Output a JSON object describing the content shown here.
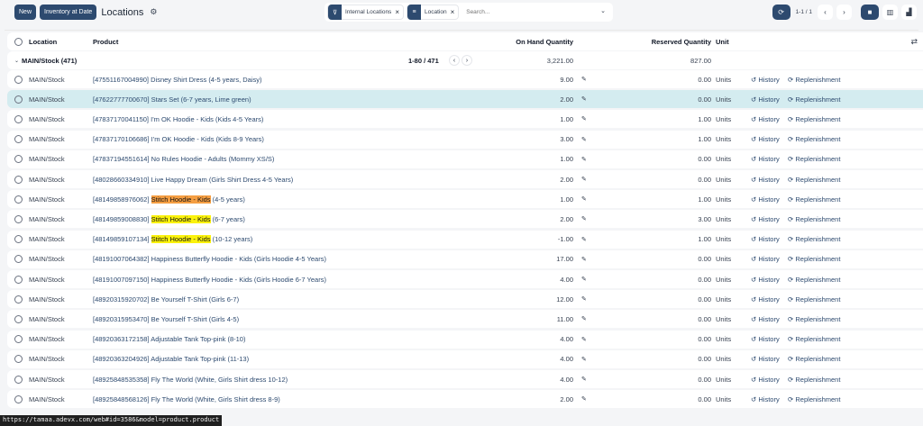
{
  "toolbar": {
    "new_label": "New",
    "inventory_label": "Inventory at Date",
    "title": "Locations",
    "pager": "1-1 / 1"
  },
  "search": {
    "facets": [
      {
        "icon": "filter-icon",
        "label": "Internal Locations"
      },
      {
        "icon": "group-icon",
        "label": "Location"
      }
    ],
    "placeholder": "Search..."
  },
  "columns": {
    "location": "Location",
    "product": "Product",
    "on_hand": "On Hand Quantity",
    "reserved": "Reserved Quantity",
    "unit": "Unit"
  },
  "group": {
    "label": "MAIN/Stock (471)",
    "pager": "1-80 / 471",
    "on_hand": "3,221.00",
    "reserved": "827.00"
  },
  "actions": {
    "history": "History",
    "replenishment": "Replenishment"
  },
  "highlight_colors": {
    "active": "#f59e42",
    "match": "#fbf20c"
  },
  "rows": [
    {
      "location": "MAIN/Stock",
      "code": "[47551167004990]",
      "name": "Disney Shirt Dress",
      "variant": "(4-5 years, Daisy)",
      "qty": "9.00",
      "reserved": "0.00",
      "unit": "Units"
    },
    {
      "location": "MAIN/Stock",
      "code": "[47622777700670]",
      "name": "Stars Set",
      "variant": "(6-7 years, Lime green)",
      "qty": "2.00",
      "reserved": "0.00",
      "unit": "Units",
      "selected": true
    },
    {
      "location": "MAIN/Stock",
      "code": "[47837170041150]",
      "name": "I'm OK Hoodie - Kids",
      "variant": "(Kids 4-5 Years)",
      "qty": "1.00",
      "reserved": "1.00",
      "unit": "Units"
    },
    {
      "location": "MAIN/Stock",
      "code": "[47837170106686]",
      "name": "I'm OK Hoodie - Kids",
      "variant": "(Kids 8-9 Years)",
      "qty": "3.00",
      "reserved": "1.00",
      "unit": "Units"
    },
    {
      "location": "MAIN/Stock",
      "code": "[47837194551614]",
      "name": "No Rules Hoodie - Adults",
      "variant": "(Mommy XS/S)",
      "qty": "1.00",
      "reserved": "0.00",
      "unit": "Units"
    },
    {
      "location": "MAIN/Stock",
      "code": "[48028660334910]",
      "name": "Live Happy Dream",
      "variant": "(Girls Shirt Dress 4-5 Years)",
      "qty": "2.00",
      "reserved": "0.00",
      "unit": "Units"
    },
    {
      "location": "MAIN/Stock",
      "code": "[48149858976062]",
      "name": "Stitch Hoodie - Kids",
      "variant": "(4-5 years)",
      "qty": "1.00",
      "reserved": "1.00",
      "unit": "Units",
      "hl": "o"
    },
    {
      "location": "MAIN/Stock",
      "code": "[48149859008830]",
      "name": "Stitch Hoodie - Kids",
      "variant": "(6-7 years)",
      "qty": "2.00",
      "reserved": "3.00",
      "unit": "Units",
      "hl": "y"
    },
    {
      "location": "MAIN/Stock",
      "code": "[48149859107134]",
      "name": "Stitch Hoodie - Kids",
      "variant": "(10-12 years)",
      "qty": "-1.00",
      "reserved": "1.00",
      "unit": "Units",
      "hl": "y"
    },
    {
      "location": "MAIN/Stock",
      "code": "[48191007064382]",
      "name": "Happiness Butterfly Hoodie - Kids",
      "variant": "(Girls Hoodie 4-5 Years)",
      "qty": "17.00",
      "reserved": "0.00",
      "unit": "Units"
    },
    {
      "location": "MAIN/Stock",
      "code": "[48191007097150]",
      "name": "Happiness Butterfly Hoodie - Kids",
      "variant": "(Girls Hoodie 6-7 Years)",
      "qty": "4.00",
      "reserved": "0.00",
      "unit": "Units"
    },
    {
      "location": "MAIN/Stock",
      "code": "[48920315920702]",
      "name": "Be Yourself T-Shirt",
      "variant": "(Girls 6-7)",
      "qty": "12.00",
      "reserved": "0.00",
      "unit": "Units"
    },
    {
      "location": "MAIN/Stock",
      "code": "[48920315953470]",
      "name": "Be Yourself T-Shirt",
      "variant": "(Girls 4-5)",
      "qty": "11.00",
      "reserved": "0.00",
      "unit": "Units"
    },
    {
      "location": "MAIN/Stock",
      "code": "[48920363172158]",
      "name": "Adjustable Tank Top-pink",
      "variant": "(8-10)",
      "qty": "4.00",
      "reserved": "0.00",
      "unit": "Units"
    },
    {
      "location": "MAIN/Stock",
      "code": "[48920363204926]",
      "name": "Adjustable Tank Top-pink",
      "variant": "(11-13)",
      "qty": "4.00",
      "reserved": "0.00",
      "unit": "Units"
    },
    {
      "location": "MAIN/Stock",
      "code": "[48925848535358]",
      "name": "Fly The World",
      "variant": "(White, Girls Shirt dress 10-12)",
      "qty": "4.00",
      "reserved": "0.00",
      "unit": "Units"
    },
    {
      "location": "MAIN/Stock",
      "code": "[48925848568126]",
      "name": "Fly The World",
      "variant": "(White, Girls Shirt dress 8-9)",
      "qty": "2.00",
      "reserved": "0.00",
      "unit": "Units"
    }
  ],
  "status_url": "https://tamaa.adevx.com/web#id=3586&model=product.product"
}
